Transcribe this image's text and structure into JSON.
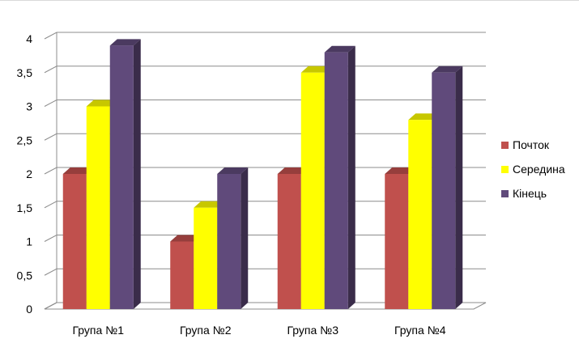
{
  "chart_data": {
    "type": "bar",
    "categories": [
      "Група №1",
      "Група №2",
      "Група №3",
      "Група №4"
    ],
    "series": [
      {
        "name": "Почток",
        "values": [
          2,
          1,
          2,
          2
        ],
        "color": "#c0504d"
      },
      {
        "name": "Середина",
        "values": [
          3,
          1.5,
          3.5,
          2.8
        ],
        "color": "#ffff00"
      },
      {
        "name": "Кінець",
        "values": [
          3.9,
          2,
          3.8,
          3.5
        ],
        "color": "#604a7b"
      }
    ],
    "yticks": [
      "0",
      "0,5",
      "1",
      "1,5",
      "2",
      "2,5",
      "3",
      "3,5",
      "4"
    ],
    "ylim": [
      0,
      4
    ],
    "ystep": 0.5,
    "grid": true,
    "legend_position": "right",
    "style": "3d-column",
    "grid_color": "#8c8c8c"
  }
}
